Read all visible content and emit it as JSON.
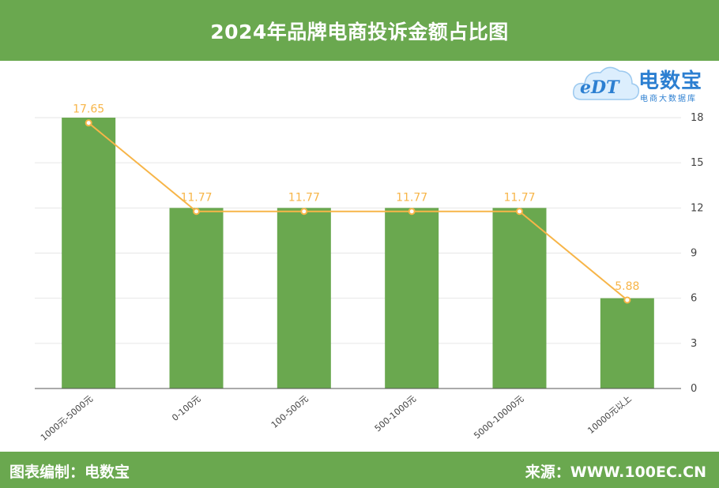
{
  "header": {
    "title": "2024年品牌电商投诉金额占比图"
  },
  "footer": {
    "left": "图表编制：电数宝",
    "right": "来源：WWW.100EC.CN"
  },
  "logo": {
    "mark": "eDT",
    "brand": "电数宝",
    "slogan": "电商大数据库"
  },
  "colors": {
    "bar": "#6aa84f",
    "line": "#f7b548",
    "header": "#6aa84f",
    "logo": "#2c7fd1"
  },
  "chart_data": {
    "type": "bar",
    "categories": [
      "1000元-5000元",
      "0-100元",
      "100-500元",
      "500-1000元",
      "5000-10000元",
      "10000元以上"
    ],
    "series": [
      {
        "type": "bar",
        "values": [
          18,
          12,
          12,
          12,
          12,
          6
        ]
      },
      {
        "type": "line",
        "values": [
          17.65,
          11.77,
          11.77,
          11.77,
          11.77,
          5.88
        ]
      }
    ],
    "y_ticks": [
      0,
      3,
      6,
      9,
      12,
      15,
      18
    ],
    "ylim": [
      0,
      18
    ],
    "y_axis_position": "right",
    "grid": true,
    "xlabel": "",
    "ylabel": ""
  }
}
